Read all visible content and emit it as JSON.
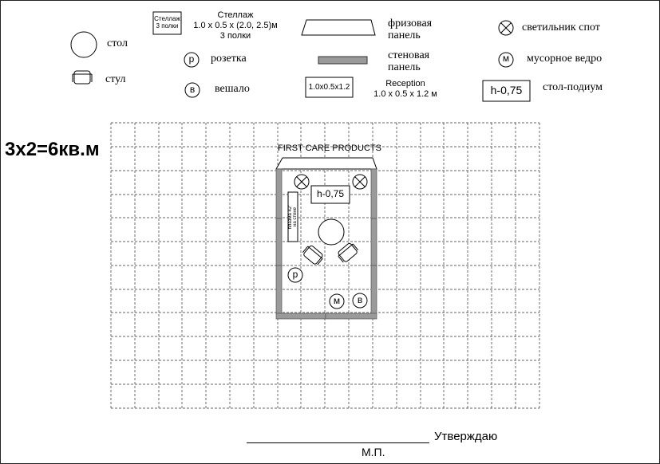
{
  "legend": {
    "table": "стол",
    "chair": "стул",
    "rack_box_line1": "Стеллаж",
    "rack_box_line2": "3 полки",
    "rack_title": "Стеллаж",
    "rack_dims": "1.0 x 0.5 x (2.0, 2.5)м",
    "rack_shelves": "3 полки",
    "socket_symbol": "р",
    "socket": "розетка",
    "hanger_symbol": "в",
    "hanger": "вешало",
    "frieze_line1": "фризовая",
    "frieze_line2": "панель",
    "wall_line1": "стеновая",
    "wall_line2": "панель",
    "reception_box": "1.0x0.5x1.2",
    "reception_title": "Reception",
    "reception_dims": "1.0 x 0.5 x 1.2 м",
    "spot": "светильник спот",
    "bin_symbol": "м",
    "bin": "мусорное ведро",
    "podium_box": "h-0,75",
    "podium": "стол-подиум"
  },
  "plan": {
    "area_label": "3х2=6кв.м",
    "fascia_text": "FIRST CARE PRODUCTS",
    "podium_label": "h-0,75",
    "plasma_line1": "плазма 42\"",
    "plasma_line2": "на стене",
    "socket_symbol": "р",
    "bin_symbol": "м",
    "hanger_symbol": "в"
  },
  "footer": {
    "approve": "Утверждаю",
    "stamp": "М.П."
  }
}
